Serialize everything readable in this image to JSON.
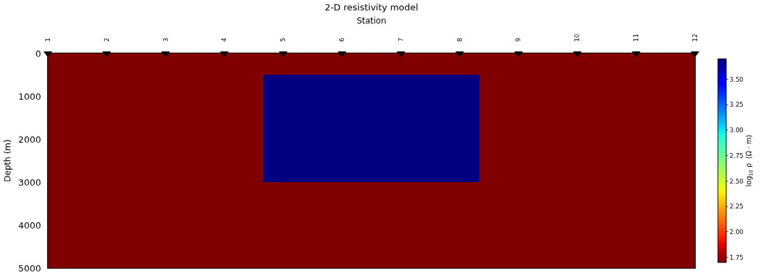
{
  "chart_data": {
    "type": "heatmap",
    "title": "2-D resistivity model",
    "xlabel": "Station",
    "ylabel": "Depth (m)",
    "clabel": "log$_{10}$ ρ  (Ω · m)",
    "cells": [
      [
        1.7,
        1.7,
        1.7
      ],
      [
        1.7,
        3.7,
        1.7
      ],
      [
        1.7,
        3.7,
        1.7
      ],
      [
        1.7,
        3.7,
        1.7
      ],
      [
        1.7,
        3.7,
        1.7
      ],
      [
        1.7,
        3.7,
        1.7
      ],
      [
        1.7,
        1.7,
        1.7
      ],
      [
        1.7,
        1.7,
        1.7
      ],
      [
        1.7,
        1.7,
        1.7
      ],
      [
        1.7,
        1.7,
        1.7
      ]
    ],
    "clim": [
      1.7,
      3.7
    ],
    "cticks": [
      1.75,
      {
        "value": 2,
        "label": "2.00"
      },
      2.25,
      {
        "value": 2.5,
        "label": "2.50"
      },
      2.75,
      {
        "value": 3,
        "label": "3.00"
      },
      3.25,
      {
        "value": 3.5,
        "label": "3.50"
      }
    ],
    "xlim": [
      1,
      12
    ],
    "xticks": [
      1,
      2,
      3,
      4,
      5,
      6,
      7,
      8,
      9,
      10,
      11,
      12
    ],
    "ylim": [
      5000,
      0
    ],
    "yticks": [
      0,
      1000,
      2000,
      3000,
      4000,
      5000
    ],
    "series": [
      {
        "type": "scatter",
        "marker": "triangle",
        "color": "#000000",
        "x": [
          1,
          2,
          3,
          4,
          5,
          6,
          7,
          8,
          9,
          10,
          11,
          12
        ],
        "values": [
          0,
          0,
          0,
          0,
          0,
          0,
          0,
          0,
          0,
          0,
          0,
          0
        ]
      }
    ]
  }
}
